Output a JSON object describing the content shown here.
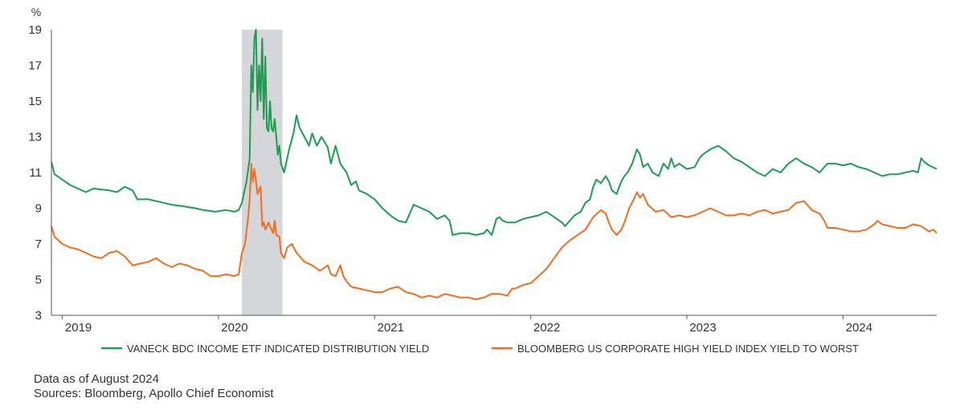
{
  "chart_data": {
    "type": "line",
    "title": "",
    "xlabel": "",
    "ylabel": "%",
    "xlim": [
      2018.93,
      2024.6
    ],
    "ylim": [
      3,
      19
    ],
    "y_ticks": [
      3,
      5,
      7,
      9,
      11,
      13,
      15,
      17,
      19
    ],
    "x_ticks": [
      {
        "value": 2019.0,
        "label": "2019"
      },
      {
        "value": 2020.0,
        "label": "2020"
      },
      {
        "value": 2021.0,
        "label": "2021"
      },
      {
        "value": 2022.0,
        "label": "2022"
      },
      {
        "value": 2023.0,
        "label": "2023"
      },
      {
        "value": 2024.0,
        "label": "2024"
      }
    ],
    "grid": false,
    "legend_position": "bottom",
    "shaded_regions": [
      {
        "x_start": 2020.15,
        "x_end": 2020.41,
        "color": "#d4d6d9"
      }
    ],
    "series": [
      {
        "name": "VANECK BDC INCOME ETF INDICATED DISTRIBUTION YIELD",
        "color": "#1a9e4f",
        "points": [
          [
            2018.93,
            11.6
          ],
          [
            2018.95,
            10.9
          ],
          [
            2019.0,
            10.6
          ],
          [
            2019.05,
            10.3
          ],
          [
            2019.1,
            10.1
          ],
          [
            2019.15,
            9.9
          ],
          [
            2019.2,
            10.1
          ],
          [
            2019.3,
            10.0
          ],
          [
            2019.35,
            9.9
          ],
          [
            2019.4,
            10.2
          ],
          [
            2019.45,
            10.0
          ],
          [
            2019.48,
            9.5
          ],
          [
            2019.55,
            9.5
          ],
          [
            2019.65,
            9.3
          ],
          [
            2019.7,
            9.2
          ],
          [
            2019.78,
            9.1
          ],
          [
            2019.85,
            9.0
          ],
          [
            2019.9,
            8.9
          ],
          [
            2019.98,
            8.8
          ],
          [
            2020.05,
            8.9
          ],
          [
            2020.1,
            8.8
          ],
          [
            2020.13,
            8.9
          ],
          [
            2020.15,
            9.3
          ],
          [
            2020.18,
            10.5
          ],
          [
            2020.2,
            11.8
          ],
          [
            2020.21,
            17.0
          ],
          [
            2020.22,
            15.5
          ],
          [
            2020.23,
            18.5
          ],
          [
            2020.24,
            19.0
          ],
          [
            2020.25,
            14.5
          ],
          [
            2020.26,
            17.0
          ],
          [
            2020.27,
            15.0
          ],
          [
            2020.28,
            18.5
          ],
          [
            2020.29,
            14.0
          ],
          [
            2020.3,
            17.5
          ],
          [
            2020.31,
            13.5
          ],
          [
            2020.32,
            13.3
          ],
          [
            2020.33,
            15.0
          ],
          [
            2020.34,
            13.5
          ],
          [
            2020.35,
            13.3
          ],
          [
            2020.36,
            14.0
          ],
          [
            2020.37,
            13.0
          ],
          [
            2020.38,
            12.0
          ],
          [
            2020.39,
            12.5
          ],
          [
            2020.4,
            11.5
          ],
          [
            2020.42,
            11.0
          ],
          [
            2020.45,
            12.2
          ],
          [
            2020.48,
            13.2
          ],
          [
            2020.5,
            14.2
          ],
          [
            2020.52,
            13.5
          ],
          [
            2020.55,
            13.0
          ],
          [
            2020.58,
            12.5
          ],
          [
            2020.6,
            13.2
          ],
          [
            2020.63,
            12.5
          ],
          [
            2020.66,
            13.0
          ],
          [
            2020.7,
            12.4
          ],
          [
            2020.72,
            11.5
          ],
          [
            2020.75,
            12.5
          ],
          [
            2020.78,
            11.5
          ],
          [
            2020.82,
            11.0
          ],
          [
            2020.85,
            10.3
          ],
          [
            2020.88,
            10.5
          ],
          [
            2020.9,
            10.0
          ],
          [
            2020.95,
            9.8
          ],
          [
            2021.0,
            9.5
          ],
          [
            2021.05,
            9.0
          ],
          [
            2021.1,
            8.6
          ],
          [
            2021.15,
            8.3
          ],
          [
            2021.2,
            8.2
          ],
          [
            2021.25,
            9.2
          ],
          [
            2021.3,
            9.0
          ],
          [
            2021.35,
            8.8
          ],
          [
            2021.4,
            8.4
          ],
          [
            2021.45,
            8.6
          ],
          [
            2021.48,
            8.3
          ],
          [
            2021.5,
            7.5
          ],
          [
            2021.55,
            7.6
          ],
          [
            2021.6,
            7.6
          ],
          [
            2021.65,
            7.5
          ],
          [
            2021.7,
            7.6
          ],
          [
            2021.72,
            7.8
          ],
          [
            2021.75,
            7.5
          ],
          [
            2021.78,
            8.4
          ],
          [
            2021.8,
            8.5
          ],
          [
            2021.82,
            8.3
          ],
          [
            2021.85,
            8.2
          ],
          [
            2021.9,
            8.2
          ],
          [
            2021.95,
            8.4
          ],
          [
            2022.0,
            8.5
          ],
          [
            2022.05,
            8.6
          ],
          [
            2022.1,
            8.8
          ],
          [
            2022.15,
            8.5
          ],
          [
            2022.2,
            8.2
          ],
          [
            2022.22,
            8.0
          ],
          [
            2022.25,
            8.3
          ],
          [
            2022.28,
            8.6
          ],
          [
            2022.32,
            8.8
          ],
          [
            2022.35,
            9.3
          ],
          [
            2022.38,
            9.5
          ],
          [
            2022.4,
            10.2
          ],
          [
            2022.42,
            10.6
          ],
          [
            2022.45,
            10.4
          ],
          [
            2022.48,
            10.8
          ],
          [
            2022.5,
            10.5
          ],
          [
            2022.52,
            10.0
          ],
          [
            2022.55,
            9.8
          ],
          [
            2022.58,
            10.5
          ],
          [
            2022.6,
            10.8
          ],
          [
            2022.62,
            11.0
          ],
          [
            2022.65,
            11.5
          ],
          [
            2022.68,
            12.3
          ],
          [
            2022.7,
            12.0
          ],
          [
            2022.72,
            11.3
          ],
          [
            2022.75,
            11.5
          ],
          [
            2022.78,
            11.0
          ],
          [
            2022.82,
            10.8
          ],
          [
            2022.85,
            11.5
          ],
          [
            2022.88,
            11.2
          ],
          [
            2022.9,
            11.8
          ],
          [
            2022.92,
            11.3
          ],
          [
            2022.95,
            11.5
          ],
          [
            2023.0,
            11.2
          ],
          [
            2023.05,
            11.3
          ],
          [
            2023.08,
            11.8
          ],
          [
            2023.1,
            12.0
          ],
          [
            2023.15,
            12.3
          ],
          [
            2023.2,
            12.5
          ],
          [
            2023.25,
            12.2
          ],
          [
            2023.3,
            11.8
          ],
          [
            2023.35,
            11.6
          ],
          [
            2023.4,
            11.3
          ],
          [
            2023.45,
            11.0
          ],
          [
            2023.5,
            10.8
          ],
          [
            2023.55,
            11.2
          ],
          [
            2023.6,
            11.0
          ],
          [
            2023.65,
            11.5
          ],
          [
            2023.7,
            11.8
          ],
          [
            2023.75,
            11.5
          ],
          [
            2023.8,
            11.3
          ],
          [
            2023.85,
            11.0
          ],
          [
            2023.9,
            11.5
          ],
          [
            2023.95,
            11.5
          ],
          [
            2024.0,
            11.4
          ],
          [
            2024.05,
            11.5
          ],
          [
            2024.1,
            11.3
          ],
          [
            2024.15,
            11.2
          ],
          [
            2024.2,
            11.0
          ],
          [
            2024.25,
            10.8
          ],
          [
            2024.3,
            10.9
          ],
          [
            2024.35,
            10.9
          ],
          [
            2024.4,
            11.0
          ],
          [
            2024.45,
            11.1
          ],
          [
            2024.48,
            11.0
          ],
          [
            2024.5,
            11.8
          ],
          [
            2024.52,
            11.6
          ],
          [
            2024.55,
            11.4
          ],
          [
            2024.6,
            11.2
          ]
        ]
      },
      {
        "name": "BLOOMBERG US CORPORATE HIGH YIELD INDEX YIELD TO WORST",
        "color": "#f26d1e",
        "points": [
          [
            2018.93,
            8.0
          ],
          [
            2018.95,
            7.4
          ],
          [
            2019.0,
            7.0
          ],
          [
            2019.05,
            6.8
          ],
          [
            2019.1,
            6.7
          ],
          [
            2019.15,
            6.5
          ],
          [
            2019.2,
            6.3
          ],
          [
            2019.25,
            6.2
          ],
          [
            2019.3,
            6.5
          ],
          [
            2019.35,
            6.6
          ],
          [
            2019.4,
            6.3
          ],
          [
            2019.45,
            5.8
          ],
          [
            2019.5,
            5.9
          ],
          [
            2019.55,
            6.0
          ],
          [
            2019.6,
            6.2
          ],
          [
            2019.65,
            5.9
          ],
          [
            2019.7,
            5.7
          ],
          [
            2019.75,
            5.9
          ],
          [
            2019.8,
            5.8
          ],
          [
            2019.85,
            5.6
          ],
          [
            2019.9,
            5.5
          ],
          [
            2019.95,
            5.2
          ],
          [
            2020.0,
            5.2
          ],
          [
            2020.05,
            5.3
          ],
          [
            2020.1,
            5.2
          ],
          [
            2020.13,
            5.3
          ],
          [
            2020.15,
            6.5
          ],
          [
            2020.17,
            7.0
          ],
          [
            2020.19,
            8.5
          ],
          [
            2020.2,
            9.5
          ],
          [
            2020.21,
            11.5
          ],
          [
            2020.22,
            10.5
          ],
          [
            2020.23,
            11.2
          ],
          [
            2020.25,
            9.8
          ],
          [
            2020.27,
            10.2
          ],
          [
            2020.28,
            8.0
          ],
          [
            2020.29,
            8.2
          ],
          [
            2020.3,
            7.8
          ],
          [
            2020.32,
            8.2
          ],
          [
            2020.34,
            7.8
          ],
          [
            2020.35,
            7.6
          ],
          [
            2020.36,
            8.3
          ],
          [
            2020.37,
            7.5
          ],
          [
            2020.39,
            7.4
          ],
          [
            2020.4,
            6.5
          ],
          [
            2020.42,
            6.2
          ],
          [
            2020.44,
            6.8
          ],
          [
            2020.47,
            7.0
          ],
          [
            2020.5,
            6.5
          ],
          [
            2020.55,
            6.0
          ],
          [
            2020.6,
            5.8
          ],
          [
            2020.65,
            5.5
          ],
          [
            2020.7,
            5.8
          ],
          [
            2020.72,
            5.3
          ],
          [
            2020.75,
            5.2
          ],
          [
            2020.78,
            5.8
          ],
          [
            2020.8,
            5.2
          ],
          [
            2020.82,
            4.9
          ],
          [
            2020.85,
            4.6
          ],
          [
            2020.9,
            4.5
          ],
          [
            2020.95,
            4.4
          ],
          [
            2021.0,
            4.3
          ],
          [
            2021.05,
            4.3
          ],
          [
            2021.1,
            4.5
          ],
          [
            2021.15,
            4.6
          ],
          [
            2021.2,
            4.3
          ],
          [
            2021.25,
            4.2
          ],
          [
            2021.3,
            4.0
          ],
          [
            2021.35,
            4.1
          ],
          [
            2021.4,
            4.0
          ],
          [
            2021.45,
            4.2
          ],
          [
            2021.5,
            4.1
          ],
          [
            2021.55,
            4.0
          ],
          [
            2021.6,
            4.0
          ],
          [
            2021.65,
            3.9
          ],
          [
            2021.7,
            4.0
          ],
          [
            2021.75,
            4.2
          ],
          [
            2021.8,
            4.2
          ],
          [
            2021.85,
            4.1
          ],
          [
            2021.88,
            4.5
          ],
          [
            2021.9,
            4.5
          ],
          [
            2021.95,
            4.7
          ],
          [
            2022.0,
            4.8
          ],
          [
            2022.05,
            5.2
          ],
          [
            2022.1,
            5.6
          ],
          [
            2022.15,
            6.2
          ],
          [
            2022.2,
            6.8
          ],
          [
            2022.25,
            7.2
          ],
          [
            2022.3,
            7.5
          ],
          [
            2022.35,
            7.8
          ],
          [
            2022.4,
            8.5
          ],
          [
            2022.45,
            8.9
          ],
          [
            2022.48,
            8.7
          ],
          [
            2022.5,
            8.2
          ],
          [
            2022.52,
            7.8
          ],
          [
            2022.55,
            7.5
          ],
          [
            2022.58,
            7.8
          ],
          [
            2022.6,
            8.2
          ],
          [
            2022.63,
            9.0
          ],
          [
            2022.66,
            9.5
          ],
          [
            2022.68,
            9.9
          ],
          [
            2022.7,
            9.6
          ],
          [
            2022.72,
            9.8
          ],
          [
            2022.75,
            9.2
          ],
          [
            2022.8,
            8.8
          ],
          [
            2022.85,
            8.9
          ],
          [
            2022.9,
            8.5
          ],
          [
            2022.95,
            8.6
          ],
          [
            2023.0,
            8.5
          ],
          [
            2023.05,
            8.6
          ],
          [
            2023.1,
            8.8
          ],
          [
            2023.15,
            9.0
          ],
          [
            2023.2,
            8.8
          ],
          [
            2023.25,
            8.6
          ],
          [
            2023.3,
            8.6
          ],
          [
            2023.35,
            8.7
          ],
          [
            2023.4,
            8.6
          ],
          [
            2023.45,
            8.8
          ],
          [
            2023.5,
            8.9
          ],
          [
            2023.55,
            8.7
          ],
          [
            2023.6,
            8.8
          ],
          [
            2023.65,
            8.9
          ],
          [
            2023.7,
            9.3
          ],
          [
            2023.75,
            9.4
          ],
          [
            2023.8,
            8.9
          ],
          [
            2023.85,
            8.7
          ],
          [
            2023.88,
            8.3
          ],
          [
            2023.9,
            7.9
          ],
          [
            2023.95,
            7.9
          ],
          [
            2024.0,
            7.8
          ],
          [
            2024.05,
            7.7
          ],
          [
            2024.1,
            7.7
          ],
          [
            2024.15,
            7.8
          ],
          [
            2024.2,
            8.1
          ],
          [
            2024.22,
            8.3
          ],
          [
            2024.25,
            8.1
          ],
          [
            2024.3,
            8.0
          ],
          [
            2024.35,
            7.9
          ],
          [
            2024.4,
            7.9
          ],
          [
            2024.45,
            8.1
          ],
          [
            2024.5,
            8.0
          ],
          [
            2024.55,
            7.7
          ],
          [
            2024.58,
            7.8
          ],
          [
            2024.6,
            7.6
          ]
        ]
      }
    ]
  },
  "footnotes": {
    "data_as_of": "Data as of August 2024",
    "sources": "Sources: Bloomberg, Apollo Chief Economist"
  }
}
